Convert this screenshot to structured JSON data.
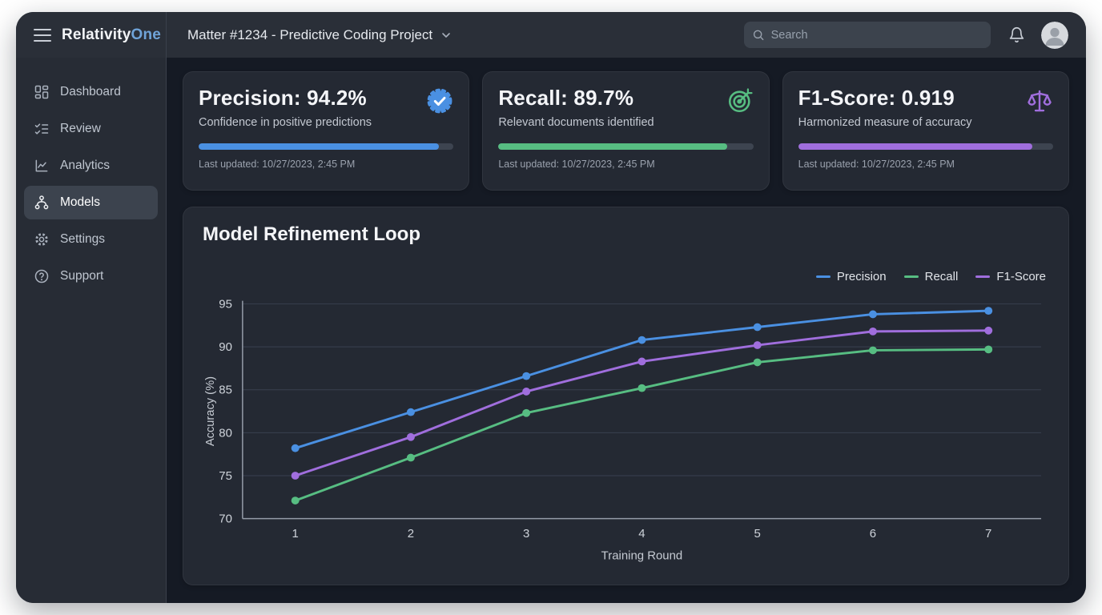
{
  "app": {
    "logo_primary": "Relativity",
    "logo_accent": "One"
  },
  "topbar": {
    "matter_title": "Matter #1234 - Predictive Coding Project",
    "search_placeholder": "Search"
  },
  "sidebar": {
    "items": [
      {
        "label": "Dashboard",
        "icon": "dashboard-icon",
        "active": false
      },
      {
        "label": "Review",
        "icon": "review-checklist-icon",
        "active": false
      },
      {
        "label": "Analytics",
        "icon": "analytics-chart-icon",
        "active": false
      },
      {
        "label": "Models",
        "icon": "models-hierarchy-icon",
        "active": true
      },
      {
        "label": "Settings",
        "icon": "settings-gear-icon",
        "active": false
      },
      {
        "label": "Support",
        "icon": "support-question-icon",
        "active": false
      }
    ]
  },
  "cards": [
    {
      "title": "Precision: 94.2%",
      "subtitle": "Confidence in positive predictions",
      "icon": "verified-badge-icon",
      "color": "#4a90e2",
      "progress_percent": 94.2,
      "updated": "Last updated: 10/27/2023, 2:45 PM"
    },
    {
      "title": "Recall: 89.7%",
      "subtitle": "Relevant documents identified",
      "icon": "target-icon",
      "color": "#57bd82",
      "progress_percent": 89.7,
      "updated": "Last updated: 10/27/2023, 2:45 PM"
    },
    {
      "title": "F1-Score: 0.919",
      "subtitle": "Harmonized measure of accuracy",
      "icon": "scales-icon",
      "color": "#a06edd",
      "progress_percent": 91.9,
      "updated": "Last updated: 10/27/2023, 2:45 PM"
    }
  ],
  "chart_data": {
    "type": "line",
    "title": "Model Refinement Loop",
    "x": [
      1,
      2,
      3,
      4,
      5,
      6,
      7
    ],
    "series": [
      {
        "name": "Precision",
        "color": "#4a90e2",
        "values": [
          78.2,
          82.4,
          86.6,
          90.8,
          92.3,
          93.8,
          94.2
        ]
      },
      {
        "name": "Recall",
        "color": "#57bd82",
        "values": [
          72.1,
          77.1,
          82.3,
          85.2,
          88.2,
          89.6,
          89.7
        ]
      },
      {
        "name": "F1-Score",
        "color": "#a06edd",
        "values": [
          75.0,
          79.5,
          84.8,
          88.3,
          90.2,
          91.8,
          91.9
        ]
      }
    ],
    "xlabel": "Training Round",
    "ylabel": "Accuracy (%)",
    "ylim": [
      70,
      95
    ],
    "yticks": [
      70,
      75,
      80,
      85,
      90,
      95
    ],
    "grid": true,
    "legend_position": "top-right"
  }
}
